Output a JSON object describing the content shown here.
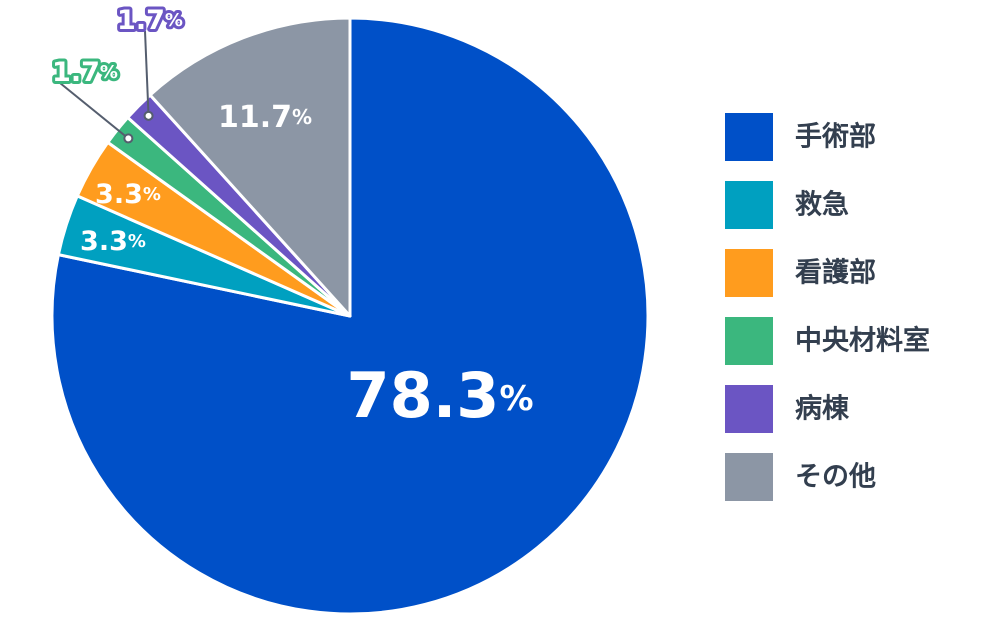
{
  "chart_data": {
    "type": "pie",
    "start_angle_deg": 0,
    "direction": "clockwise",
    "slices": [
      {
        "name": "手術部",
        "value": 78.3,
        "label_num": "78.3",
        "label_unit": "%",
        "color": "#0050c8",
        "label_color": "#ffffff",
        "outline": false
      },
      {
        "name": "救急",
        "value": 3.3,
        "label_num": "3.3",
        "label_unit": "%",
        "color": "#00a0c0",
        "label_color": "#ffffff",
        "outline": false
      },
      {
        "name": "看護部",
        "value": 3.3,
        "label_num": "3.3",
        "label_unit": "%",
        "color": "#ff9c1e",
        "label_color": "#ffffff",
        "outline": false
      },
      {
        "name": "中央材料室",
        "value": 1.7,
        "label_num": "1.7",
        "label_unit": "%",
        "color": "#3bb77e",
        "label_color": "#ffffff",
        "outline": true
      },
      {
        "name": "病棟",
        "value": 1.7,
        "label_num": "1.7",
        "label_unit": "%",
        "color": "#6b55c3",
        "label_color": "#ffffff",
        "outline": true
      },
      {
        "name": "その他",
        "value": 11.7,
        "label_num": "11.7",
        "label_unit": "%",
        "color": "#8c96a5",
        "label_color": "#ffffff",
        "outline": false
      }
    ],
    "legend_position": "right"
  }
}
